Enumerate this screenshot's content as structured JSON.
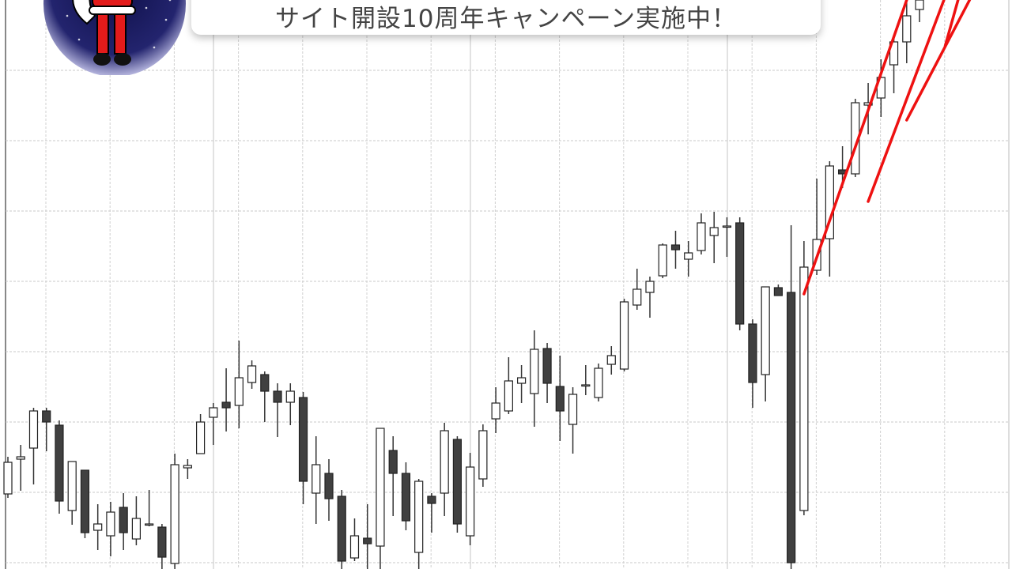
{
  "banner": {
    "text": "サイト開設10周年キャンペーン実施中！"
  },
  "logo": {
    "icon": "santa-claus-icon",
    "background": "#1e1f6b"
  },
  "chart_data": {
    "type": "candlestick",
    "title": "",
    "xlabel": "",
    "ylabel": "",
    "grid": true,
    "ylim": [
      0,
      72
    ],
    "colors": {
      "bullish": "#ffffff",
      "bearish": "#404040",
      "outline": "#222222",
      "trendline": "#ee1111"
    },
    "candles": [
      [
        9.5,
        13.5,
        14.2,
        9.0
      ],
      [
        13.9,
        14.2,
        15.7,
        9.9
      ],
      [
        15.3,
        20.0,
        20.4,
        10.7
      ],
      [
        20.0,
        18.6,
        20.4,
        14.9
      ],
      [
        18.2,
        8.6,
        18.8,
        7.0
      ],
      [
        7.4,
        13.6,
        13.6,
        5.6
      ],
      [
        12.5,
        4.6,
        12.5,
        3.9
      ],
      [
        4.9,
        5.7,
        8.2,
        2.4
      ],
      [
        4.2,
        7.2,
        8.5,
        1.6
      ],
      [
        7.8,
        4.6,
        9.6,
        2.4
      ],
      [
        3.8,
        6.4,
        9.2,
        3.0
      ],
      [
        5.7,
        5.7,
        10.0,
        5.4
      ],
      [
        5.3,
        1.5,
        5.7,
        0.0
      ],
      [
        0.7,
        13.2,
        14.6,
        0.0
      ],
      [
        12.8,
        13.1,
        13.9,
        11.4
      ],
      [
        14.6,
        18.6,
        19.6,
        14.6
      ],
      [
        19.2,
        20.4,
        21.0,
        15.7
      ],
      [
        21.1,
        20.4,
        25.4,
        17.4
      ],
      [
        20.7,
        24.2,
        28.9,
        17.8
      ],
      [
        23.6,
        25.7,
        26.4,
        22.8
      ],
      [
        24.6,
        22.5,
        25.0,
        18.6
      ],
      [
        22.5,
        21.1,
        23.5,
        16.7
      ],
      [
        21.1,
        22.5,
        23.5,
        18.2
      ],
      [
        21.7,
        11.1,
        22.4,
        8.2
      ],
      [
        9.6,
        13.2,
        16.8,
        5.7
      ],
      [
        12.1,
        8.9,
        13.9,
        6.1
      ],
      [
        9.2,
        1.0,
        10.0,
        0.0
      ],
      [
        1.4,
        4.2,
        6.4,
        1.0
      ],
      [
        3.9,
        3.2,
        8.2,
        0.0
      ],
      [
        2.9,
        17.8,
        17.8,
        0.0
      ],
      [
        15.0,
        12.1,
        16.8,
        6.7
      ],
      [
        12.1,
        6.1,
        13.5,
        4.9
      ],
      [
        2.1,
        11.1,
        11.4,
        0.0
      ],
      [
        9.2,
        8.3,
        9.6,
        4.6
      ],
      [
        9.6,
        17.5,
        18.5,
        6.7
      ],
      [
        16.4,
        5.7,
        16.8,
        4.6
      ],
      [
        4.2,
        12.9,
        14.7,
        3.0
      ],
      [
        11.4,
        17.5,
        18.3,
        10.4
      ],
      [
        19.0,
        21.0,
        23.0,
        17.2
      ],
      [
        20.0,
        23.8,
        26.8,
        19.6
      ],
      [
        23.5,
        24.2,
        25.8,
        21.0
      ],
      [
        22.2,
        27.8,
        30.2,
        18.0
      ],
      [
        27.9,
        23.5,
        28.6,
        21.0
      ],
      [
        23.1,
        20.0,
        27.0,
        16.2
      ],
      [
        18.3,
        22.1,
        23.0,
        14.6
      ],
      [
        23.3,
        23.3,
        25.8,
        22.0
      ],
      [
        21.7,
        25.4,
        26.0,
        21.2
      ],
      [
        25.9,
        27.0,
        28.2,
        24.6
      ],
      [
        25.3,
        33.8,
        34.2,
        25.0
      ],
      [
        33.4,
        35.4,
        38.0,
        32.8
      ],
      [
        35.0,
        36.4,
        37.0,
        31.8
      ],
      [
        37.1,
        41.0,
        41.2,
        36.8
      ],
      [
        41.0,
        40.4,
        42.8,
        38.0
      ],
      [
        39.2,
        40.0,
        41.5,
        37.0
      ],
      [
        40.3,
        43.8,
        45.0,
        39.8
      ],
      [
        42.2,
        43.2,
        45.2,
        38.7
      ],
      [
        43.4,
        43.4,
        44.5,
        39.5
      ],
      [
        43.8,
        31.0,
        44.5,
        30.2
      ],
      [
        31.0,
        23.6,
        31.6,
        20.4
      ],
      [
        24.6,
        35.7,
        35.7,
        21.2
      ],
      [
        35.6,
        34.6,
        36.0,
        34.6
      ],
      [
        35.0,
        0.8,
        43.5,
        0.0
      ],
      [
        7.4,
        38.2,
        41.5,
        6.8
      ],
      [
        37.8,
        41.7,
        49.4,
        37.2
      ],
      [
        41.8,
        51.0,
        51.6,
        37.0
      ],
      [
        50.5,
        50.0,
        53.5,
        48.2
      ],
      [
        50.0,
        59.0,
        59.5,
        49.6
      ],
      [
        58.7,
        59.0,
        61.5,
        55.0
      ],
      [
        59.6,
        62.2,
        64.5,
        57.2
      ],
      [
        63.8,
        66.7,
        67.5,
        60.2
      ],
      [
        66.7,
        70.0,
        71.8,
        64.0
      ],
      [
        70.8,
        72.0,
        72.0,
        69.2
      ]
    ],
    "trendlines": [
      {
        "from": [
          63,
          34.8
        ],
        "to": [
          71,
          72
        ]
      },
      {
        "from": [
          68,
          46.5
        ],
        "to": [
          73.9,
          72
        ]
      },
      {
        "from": [
          71,
          56.8
        ],
        "to": [
          75.9,
          72
        ]
      },
      {
        "from": [
          74,
          66.2
        ],
        "to": [
          75,
          72
        ]
      }
    ]
  }
}
